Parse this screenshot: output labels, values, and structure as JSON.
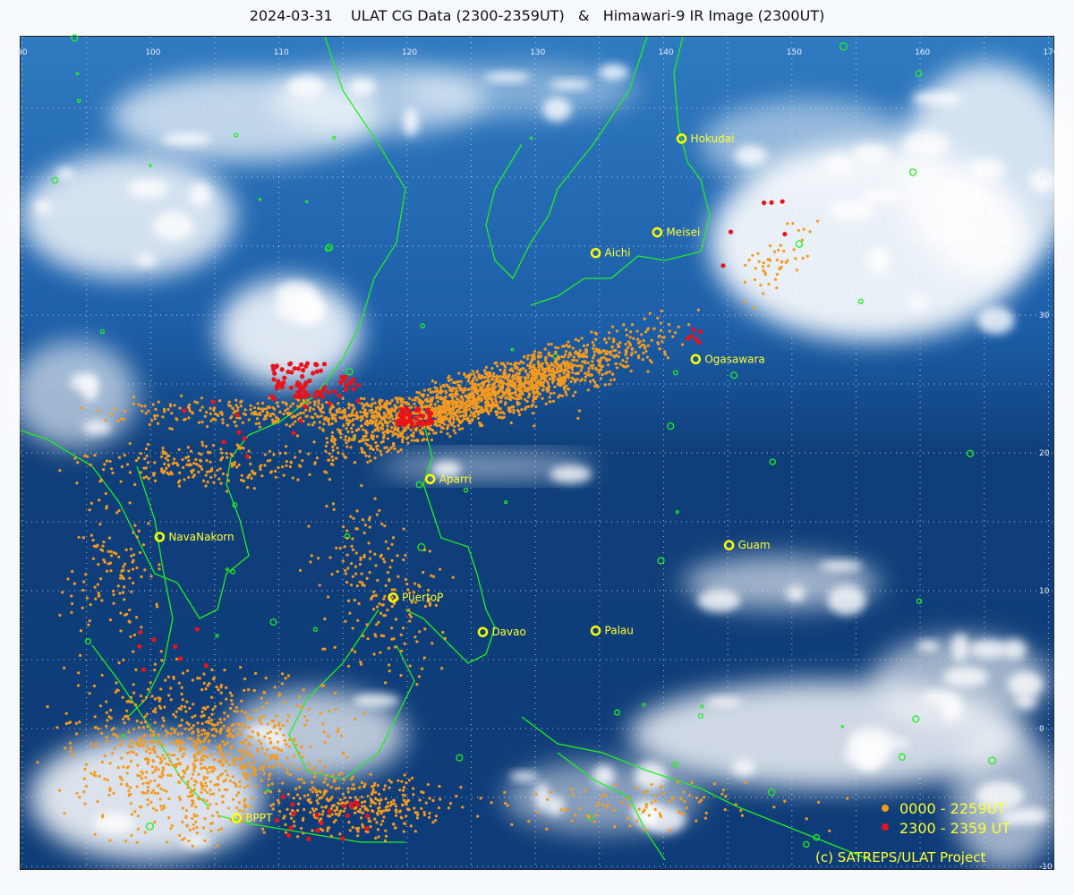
{
  "title": "2024-03-31    ULAT CG Data (2300-2359UT)   &   Himawari-9 IR Image (2300UT)",
  "map": {
    "lon_labels": [
      "90",
      "100",
      "110",
      "120",
      "130",
      "140",
      "150",
      "160",
      "170"
    ],
    "lat_labels": [
      "40",
      "30",
      "20",
      "10",
      "0",
      "-10"
    ],
    "lon_range": [
      90,
      170.5
    ],
    "lat_range": [
      50,
      -10.3
    ],
    "grid_spacing_deg": 5,
    "stations": [
      {
        "name": "Hokudai",
        "lon": 141.4,
        "lat": 42.8
      },
      {
        "name": "Meisei",
        "lon": 139.5,
        "lat": 36.0
      },
      {
        "name": "Aichi",
        "lon": 134.7,
        "lat": 34.5
      },
      {
        "name": "Ogasawara",
        "lon": 142.5,
        "lat": 26.8
      },
      {
        "name": "Aparri",
        "lon": 121.8,
        "lat": 18.1
      },
      {
        "name": "NavaNakorn",
        "lon": 100.7,
        "lat": 13.9
      },
      {
        "name": "Guam",
        "lon": 145.1,
        "lat": 13.3
      },
      {
        "name": "PuertoP",
        "lon": 118.9,
        "lat": 9.5
      },
      {
        "name": "Davao",
        "lon": 125.9,
        "lat": 7.0
      },
      {
        "name": "Palau",
        "lon": 134.7,
        "lat": 7.1
      },
      {
        "name": "BPPT",
        "lon": 106.7,
        "lat": -6.5
      }
    ],
    "legend": [
      {
        "label": "0000 - 2259UT",
        "color": "#f59a1f"
      },
      {
        "label": "2300 - 2359 UT",
        "color": "#e8141c"
      }
    ],
    "credit": "(c) SATREPS/ULAT Project",
    "colors": {
      "ocean": "#0f3f7a",
      "cloud": "#ffffff",
      "coast": "#22ee22",
      "station": "#ffff00",
      "label": "#ffff33"
    }
  }
}
